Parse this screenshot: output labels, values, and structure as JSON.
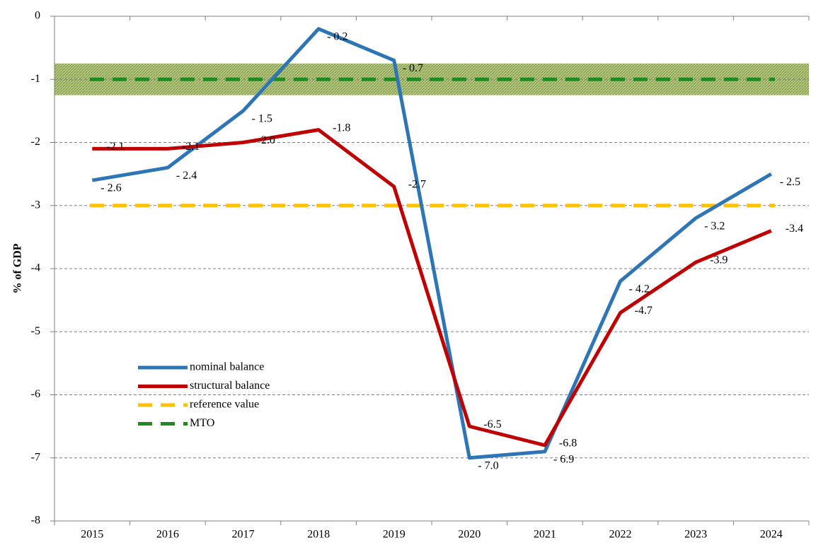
{
  "chart_data": {
    "type": "line",
    "y_label": "% of GDP",
    "categories": [
      "2015",
      "2016",
      "2017",
      "2018",
      "2019",
      "2020",
      "2021",
      "2022",
      "2023",
      "2024"
    ],
    "series": [
      {
        "name": "nominal balance",
        "color": "#2e75b6",
        "values": [
          -2.6,
          -2.4,
          -1.5,
          -0.2,
          -0.7,
          -7.0,
          -6.9,
          -4.2,
          -3.2,
          -2.5
        ],
        "value_labels": [
          "- 2.6",
          "- 2.4",
          "- 1.5",
          "- 0.2",
          "- 0.7",
          "- 7.0",
          "- 6.9",
          "- 4.2",
          "- 3.2",
          "- 2.5"
        ]
      },
      {
        "name": "structural balance",
        "color": "#c00000",
        "values": [
          -2.1,
          -2.1,
          -2.0,
          -1.8,
          -2.7,
          -6.5,
          -6.8,
          -4.7,
          -3.9,
          -3.4
        ],
        "value_labels": [
          "-2.1",
          "-2.1",
          "-2.0",
          "-1.8",
          "-2.7",
          "-6.5",
          "-6.8",
          "-4.7",
          "-3.9",
          "-3.4"
        ]
      }
    ],
    "reference_lines": [
      {
        "name": "reference value",
        "color": "#ffc000",
        "value": -3
      },
      {
        "name": "MTO",
        "color": "#1e8c1e",
        "value": -1,
        "band": [
          -1.25,
          -0.75
        ]
      }
    ],
    "ylim": [
      -8,
      0
    ],
    "yticks": [
      0,
      -1,
      -2,
      -3,
      -4,
      -5,
      -6,
      -7,
      -8
    ],
    "grid": true
  }
}
